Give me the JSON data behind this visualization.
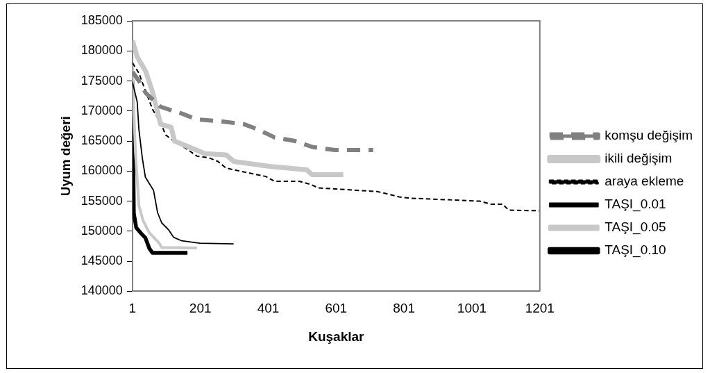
{
  "chart_data": {
    "type": "line",
    "xlabel": "Kuşaklar",
    "ylabel": "Uyum değeri",
    "xlim": [
      1,
      1201
    ],
    "xticks": [
      1,
      201,
      401,
      601,
      801,
      1001,
      1201
    ],
    "ylim": [
      140000,
      185000
    ],
    "yticks": [
      140000,
      145000,
      150000,
      155000,
      160000,
      165000,
      170000,
      175000,
      180000,
      185000
    ],
    "grid": false,
    "legend": "right",
    "marker": "none",
    "series": [
      {
        "name": "komşu değişim",
        "color": "#808080",
        "line_style": "dashed",
        "x": [
          1,
          20,
          40,
          84,
          150,
          190,
          260,
          330,
          372,
          420,
          480,
          532,
          598,
          710
        ],
        "values": [
          176500,
          175000,
          173000,
          170700,
          169500,
          168600,
          168300,
          167800,
          166900,
          165600,
          165000,
          164000,
          163500,
          163500
        ]
      },
      {
        "name": "ikili değişim",
        "color": "#c8c8c8",
        "line_style": "solid",
        "x": [
          1,
          15,
          40,
          60,
          84,
          115,
          125,
          215,
          277,
          300,
          405,
          515,
          530,
          622
        ],
        "values": [
          181700,
          179000,
          176600,
          173200,
          167800,
          167300,
          165000,
          162900,
          162700,
          161600,
          160800,
          160200,
          159400,
          159400
        ]
      },
      {
        "name": "araya ekleme",
        "color": "#000000",
        "line_style": "dashed",
        "x": [
          1,
          20,
          39,
          60,
          84,
          99,
          122,
          150,
          191,
          227,
          253,
          277,
          301,
          360,
          394,
          420,
          492,
          525,
          549,
          722,
          753,
          787,
          818,
          1025,
          1056,
          1091,
          1110,
          1201
        ],
        "values": [
          178000,
          176300,
          173400,
          170300,
          168000,
          166000,
          165000,
          164100,
          162500,
          162200,
          161600,
          160500,
          160200,
          159500,
          159100,
          158300,
          158300,
          157800,
          157200,
          156600,
          156200,
          155700,
          155500,
          155000,
          154500,
          154500,
          153500,
          153400
        ]
      },
      {
        "name": "TAŞI_0.01",
        "color": "#000000",
        "line_style": "solid",
        "x": [
          1,
          15,
          20,
          30,
          39,
          63,
          75,
          87,
          108,
          122,
          146,
          199,
          299
        ],
        "values": [
          174800,
          171500,
          166900,
          162200,
          159000,
          156800,
          153100,
          151400,
          150200,
          149000,
          148400,
          148000,
          147900
        ]
      },
      {
        "name": "TAŞI_0.05",
        "color": "#c8c8c8",
        "line_style": "solid",
        "x": [
          1,
          5,
          10,
          20,
          32,
          51,
          80,
          87,
          191
        ],
        "values": [
          178000,
          170000,
          163000,
          154300,
          151800,
          149700,
          148000,
          147300,
          147200
        ]
      },
      {
        "name": "TAŞI_0.10",
        "color": "#000000",
        "line_style": "solid",
        "x": [
          1,
          5,
          12,
          27,
          39,
          51,
          60,
          163
        ],
        "values": [
          175000,
          153000,
          150600,
          149600,
          148900,
          147100,
          146400,
          146400
        ]
      }
    ]
  }
}
